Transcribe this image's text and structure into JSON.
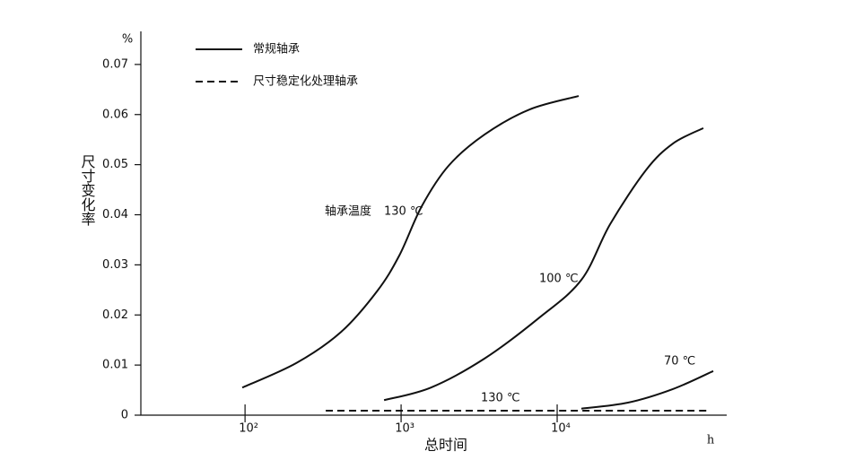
{
  "chart_data": {
    "type": "line",
    "x_label": "总时间",
    "y_label": "尺寸变化率",
    "y_unit": "%",
    "x_unit": "h",
    "xscale": "log",
    "xlim": [
      21.5,
      122000
    ],
    "ylim": [
      0,
      0.0766
    ],
    "xticks": [
      {
        "value": 100,
        "label": "10²"
      },
      {
        "value": 1000,
        "label": "10³"
      },
      {
        "value": 10000,
        "label": "10⁴"
      }
    ],
    "yticks": [
      0,
      0.01,
      0.02,
      0.03,
      0.04,
      0.05,
      0.06,
      0.07
    ],
    "legend": [
      {
        "name": "常规轴承",
        "dashed": false
      },
      {
        "name": "尺寸稳定化处理轴承",
        "dashed": true
      }
    ],
    "annotation": "轴承温度",
    "series": [
      {
        "label": "130 ℃",
        "color": "#111111",
        "dashed": false,
        "x": [
          96,
          213,
          412,
          700,
          975,
          1356,
          2017,
          3423,
          6640,
          13740
        ],
        "values": [
          0.0055,
          0.0104,
          0.0166,
          0.0247,
          0.0319,
          0.0417,
          0.0498,
          0.056,
          0.061,
          0.0637
        ]
      },
      {
        "label": "100 ℃",
        "color": "#111111",
        "dashed": false,
        "x": [
          778,
          1549,
          3423,
          7568,
          14290,
          21830,
          37060,
          55100,
          86400
        ],
        "values": [
          0.003,
          0.0055,
          0.0113,
          0.0193,
          0.027,
          0.0381,
          0.0489,
          0.0542,
          0.0573
        ]
      },
      {
        "label": "70 ℃",
        "color": "#111111",
        "dashed": false,
        "x": [
          14290,
          28440,
          55100,
          100000
        ],
        "values": [
          0.0013,
          0.0025,
          0.0052,
          0.0088
        ]
      },
      {
        "label": "130 ℃",
        "color": "#111111",
        "dashed": true,
        "x": [
          329,
          93500
        ],
        "values": [
          0.0009,
          0.0009
        ]
      }
    ]
  }
}
